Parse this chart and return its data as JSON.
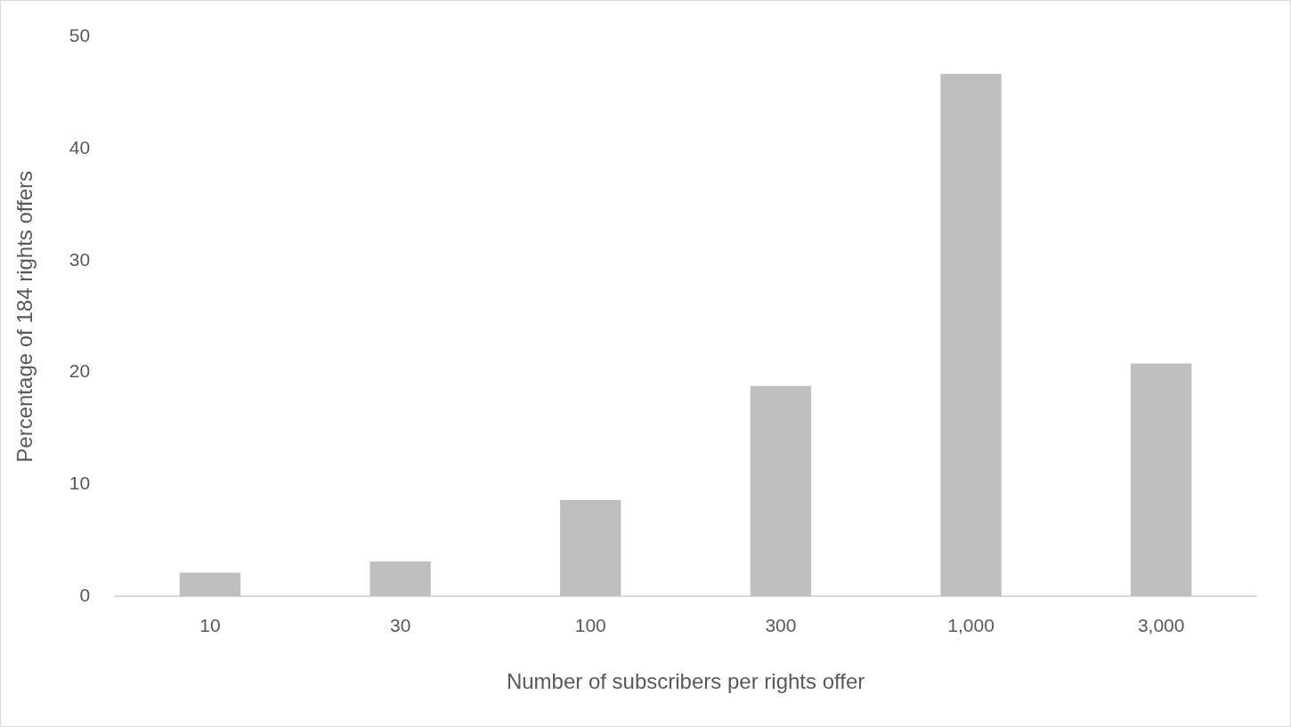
{
  "chart_data": {
    "type": "bar",
    "xlabel": "Number of subscribers per rights offer",
    "ylabel": "Percentage of 184 rights offers",
    "categories": [
      "10",
      "30",
      "100",
      "300",
      "1,000",
      "3,000"
    ],
    "values": [
      2.1,
      3.1,
      8.6,
      18.8,
      46.7,
      20.8
    ],
    "color": "#bfbfbf",
    "ylim": [
      0,
      50
    ],
    "yticks": [
      0,
      10,
      20,
      30,
      40,
      50
    ],
    "grid": false,
    "legend": false
  }
}
